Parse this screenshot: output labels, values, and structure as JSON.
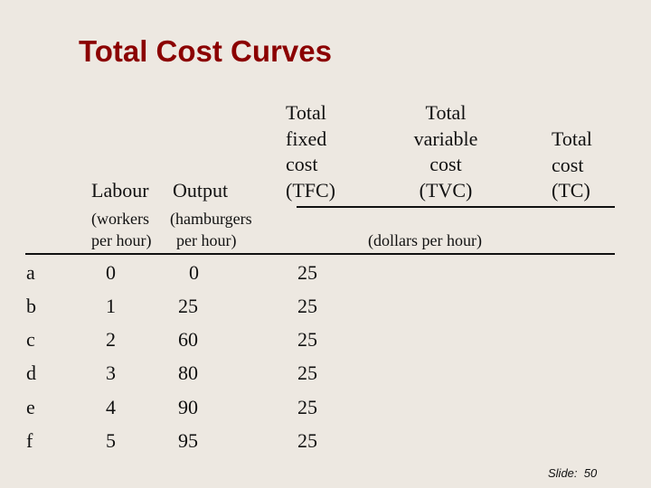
{
  "title": "Total Cost Curves",
  "headers": {
    "labour": "Labour",
    "output": "Output",
    "tfc": [
      "Total",
      "fixed",
      "cost",
      "(TFC)"
    ],
    "tvc": [
      "Total",
      "variable",
      "cost",
      "(TVC)"
    ],
    "tc": [
      "Total",
      "cost",
      "(TC)"
    ]
  },
  "units": {
    "labour": [
      "(workers",
      "per hour)"
    ],
    "output": [
      "(hamburgers",
      "per hour)"
    ],
    "dollars": "(dollars per hour)"
  },
  "rows": [
    {
      "label": "a",
      "labour": "0",
      "output": "0",
      "tfc": "25"
    },
    {
      "label": "b",
      "labour": "1",
      "output": "25",
      "tfc": "25"
    },
    {
      "label": "c",
      "labour": "2",
      "output": "60",
      "tfc": "25"
    },
    {
      "label": "d",
      "labour": "3",
      "output": "80",
      "tfc": "25"
    },
    {
      "label": "e",
      "labour": "4",
      "output": "90",
      "tfc": "25"
    },
    {
      "label": "f",
      "labour": "5",
      "output": "95",
      "tfc": "25"
    }
  ],
  "footer": {
    "slide_label": "Slide:",
    "slide_number": "50"
  }
}
